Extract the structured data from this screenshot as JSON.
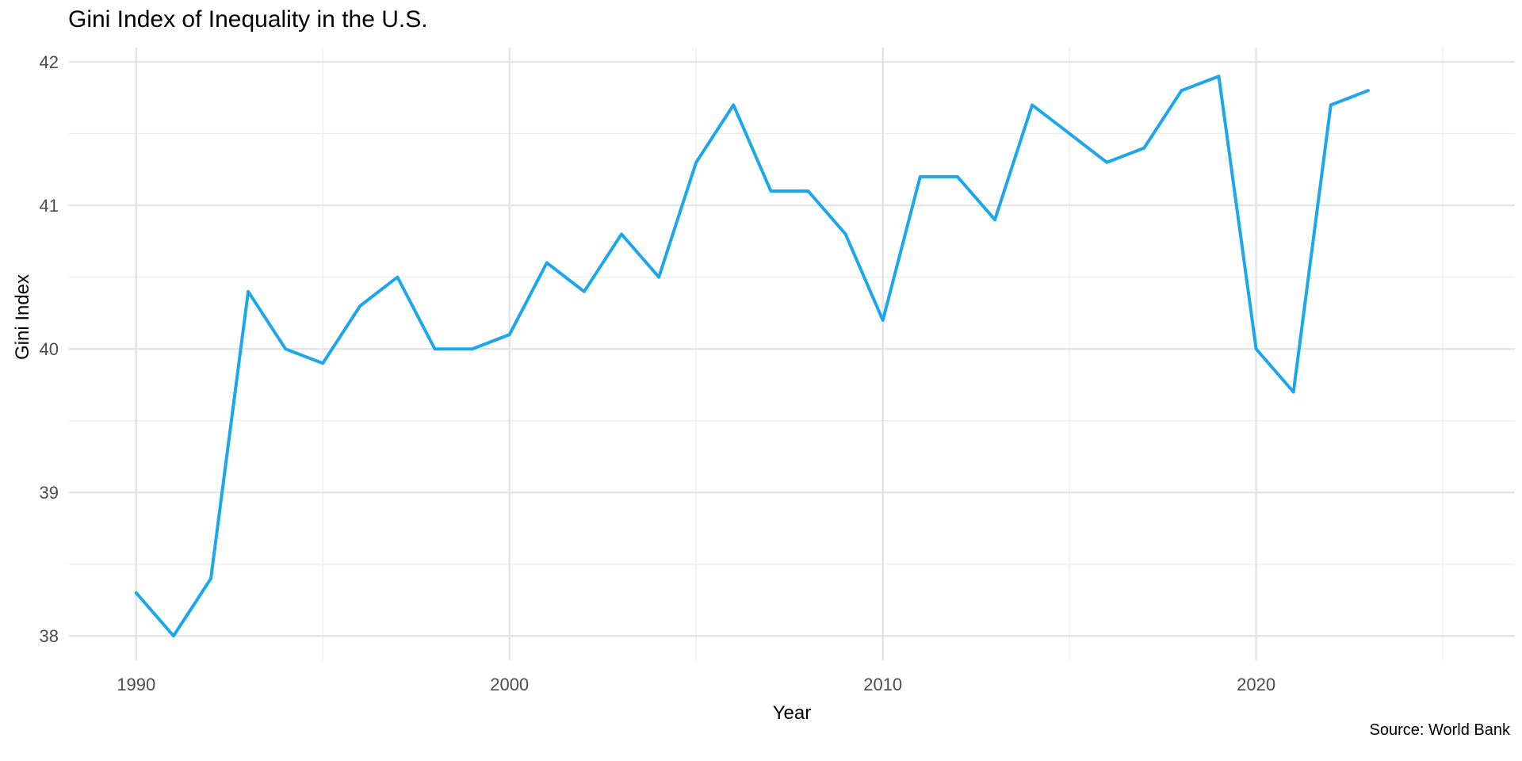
{
  "chart_data": {
    "type": "line",
    "title": "Gini Index of Inequality in the U.S.",
    "xlabel": "Year",
    "ylabel": "Gini Index",
    "caption": "Source: World Bank",
    "x": [
      1990,
      1991,
      1992,
      1993,
      1994,
      1995,
      1996,
      1997,
      1998,
      1999,
      2000,
      2001,
      2002,
      2003,
      2004,
      2005,
      2006,
      2007,
      2008,
      2009,
      2010,
      2011,
      2012,
      2013,
      2014,
      2015,
      2016,
      2017,
      2018,
      2019,
      2020,
      2021,
      2022,
      2023
    ],
    "series": [
      {
        "name": "Gini Index",
        "values": [
          38.3,
          38.0,
          38.4,
          40.4,
          40.0,
          39.9,
          40.3,
          40.5,
          40.0,
          40.0,
          40.1,
          40.6,
          40.4,
          40.8,
          40.5,
          41.3,
          41.7,
          41.1,
          41.1,
          40.8,
          40.2,
          41.2,
          41.2,
          40.9,
          41.7,
          41.5,
          41.3,
          41.4,
          41.8,
          41.9,
          40.0,
          39.7,
          41.7,
          41.8
        ]
      }
    ],
    "x_ticks_major": [
      1990,
      2000,
      2010,
      2020
    ],
    "x_ticks_minor": [
      1995,
      2005,
      2015,
      2025
    ],
    "y_ticks_major": [
      38,
      39,
      40,
      41,
      42
    ],
    "y_ticks_minor": [
      38.5,
      39.5,
      40.5,
      41.5
    ],
    "xlim": [
      1988.2,
      2026.93
    ],
    "ylim": [
      37.83,
      42.1
    ],
    "grid": true,
    "legend_position": "none",
    "colors": {
      "line": "#1CA7EC",
      "grid_major": "#E4E4E4",
      "grid_minor": "#EEEEEE",
      "tick_labels": "#4D4D4D",
      "text": "#000000",
      "background": "#FFFFFF"
    }
  }
}
